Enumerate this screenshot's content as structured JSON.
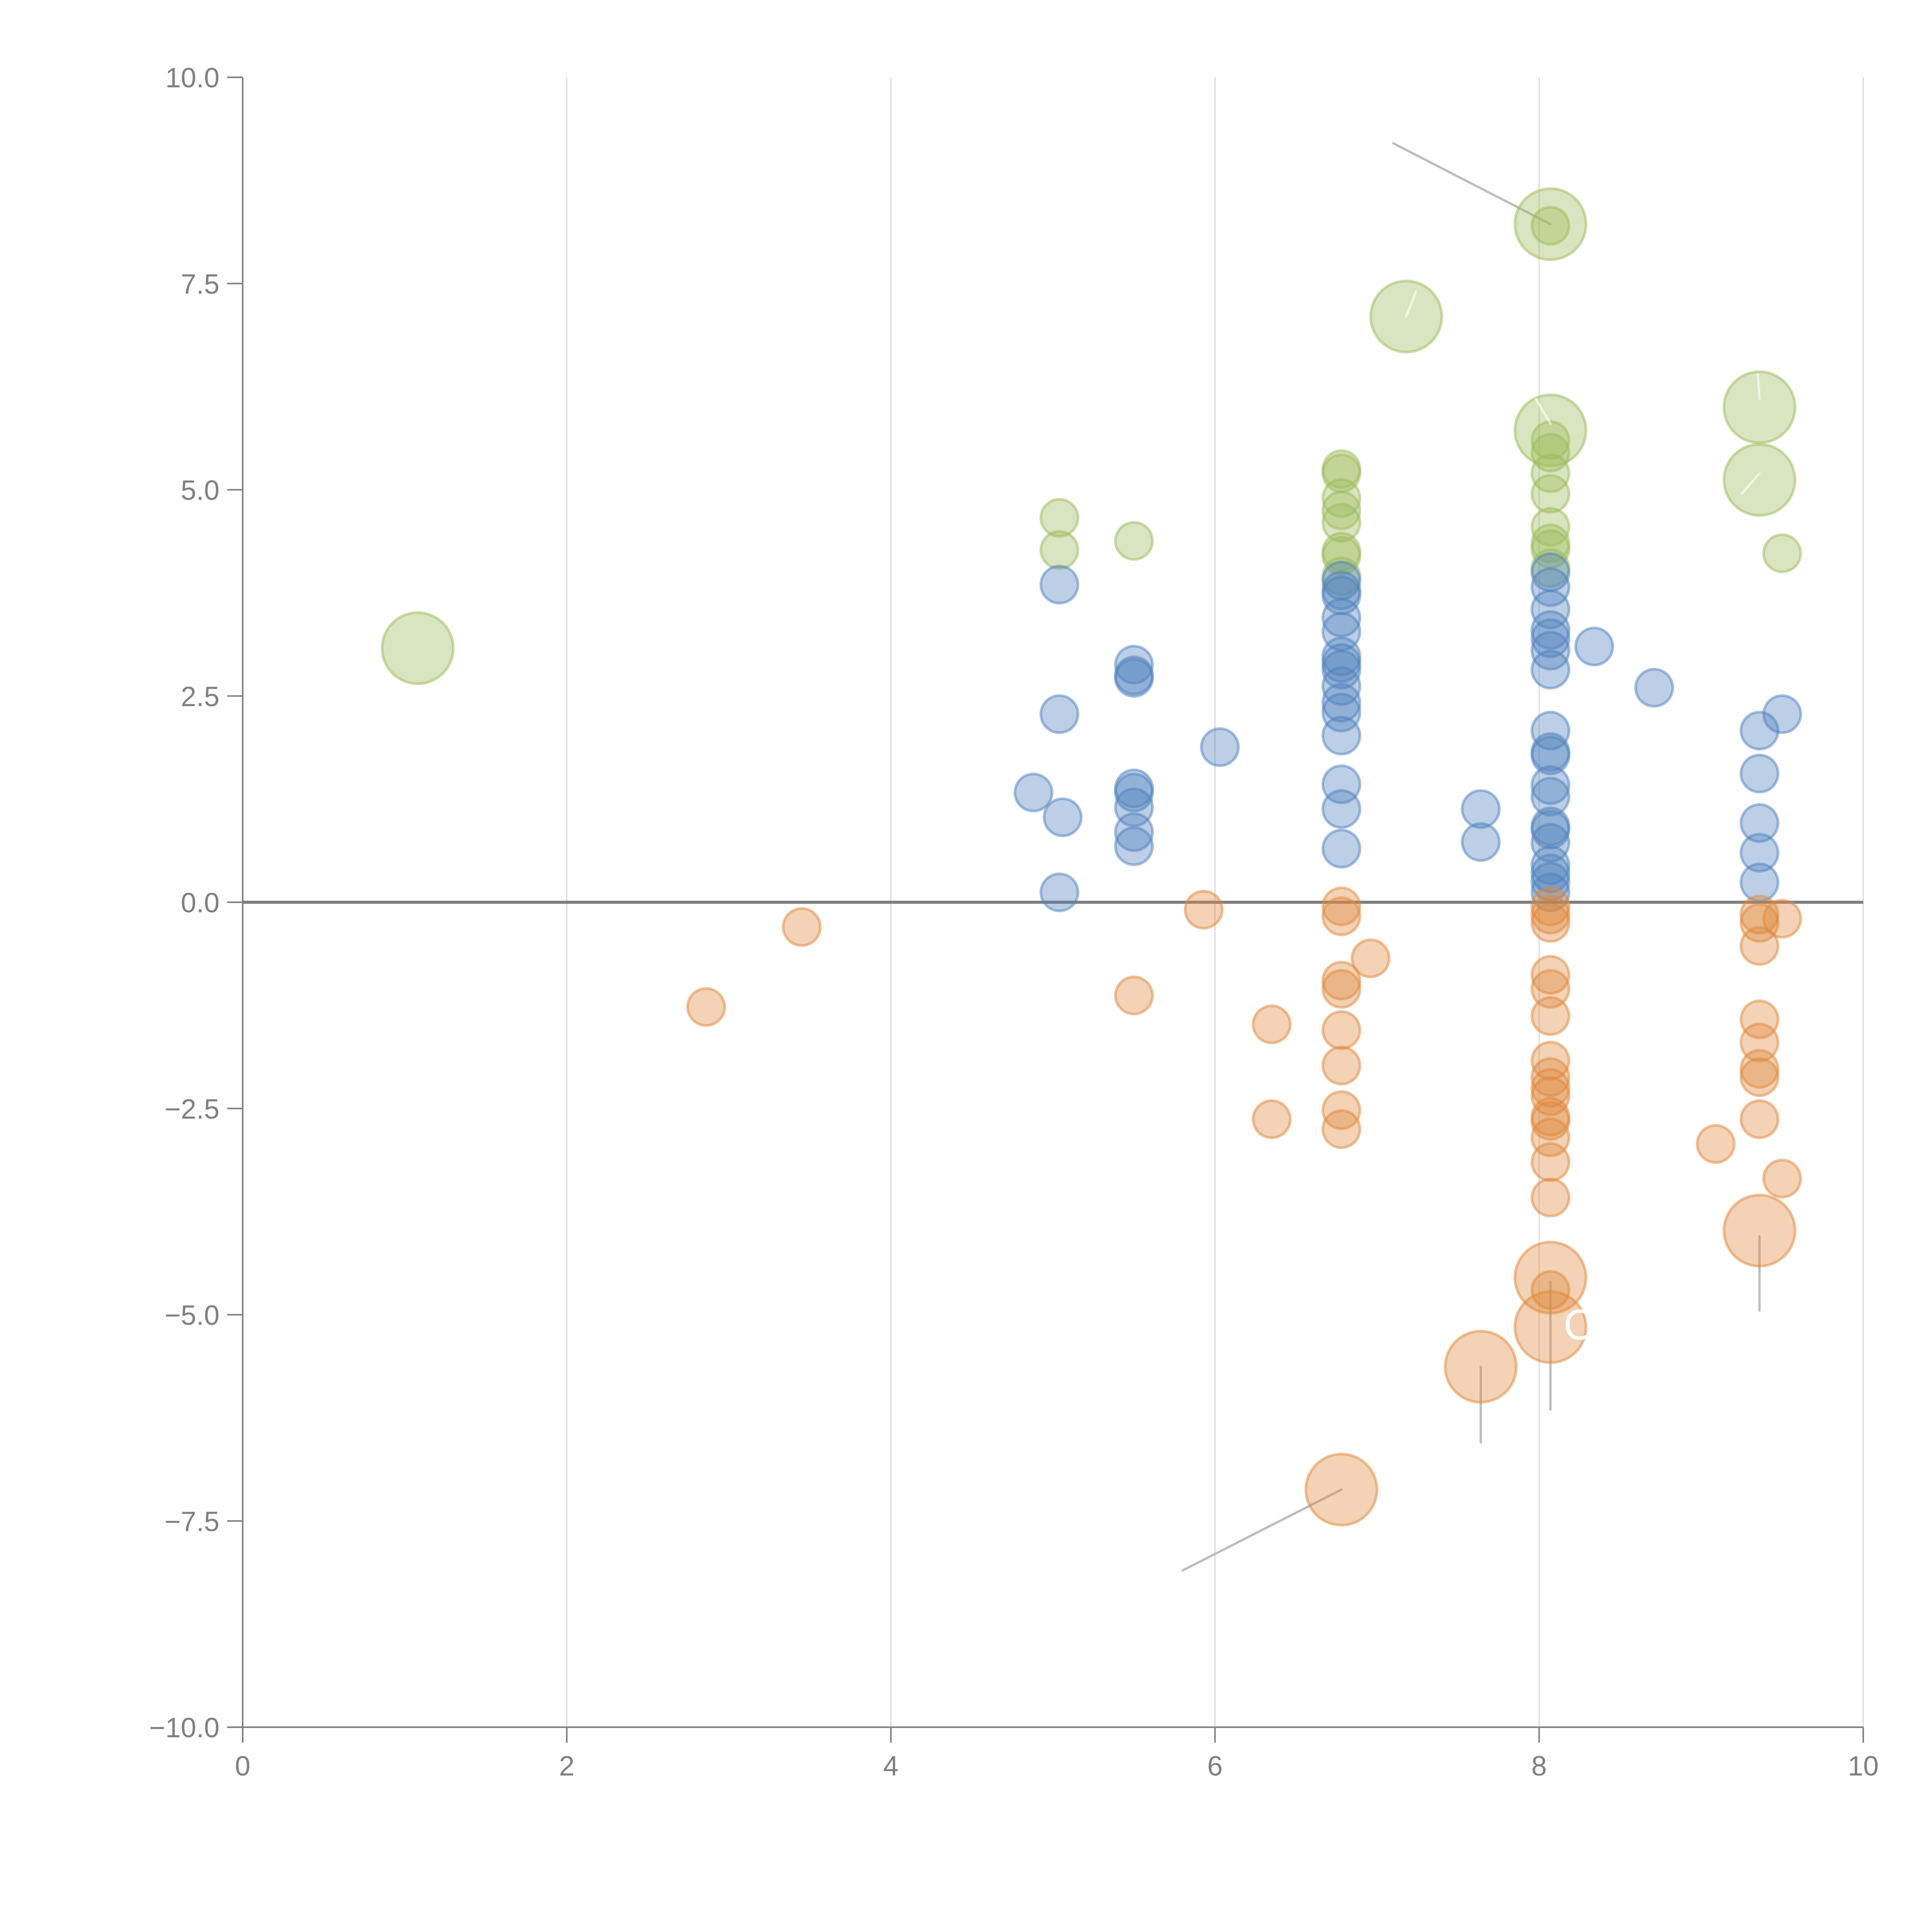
{
  "chart_data": {
    "type": "scatter",
    "title": "",
    "xlabel": "",
    "ylabel": "",
    "xlim": [
      0,
      10
    ],
    "ylim": [
      -10,
      10
    ],
    "x_ticks": [
      "0",
      "2",
      "4",
      "6",
      "8",
      "10"
    ],
    "y_ticks": [
      "10.0",
      "7.5",
      "5.0",
      "2.5",
      "0.0",
      "−2.5",
      "−5.0",
      "−7.5",
      "−10.0"
    ],
    "grid": "vertical",
    "reference_line_y": 0,
    "legend": "none",
    "colors": {
      "green": "#9bbb59",
      "blue": "#4f81bd",
      "orange": "#e0883c"
    },
    "series": [
      {
        "name": "green",
        "points": [
          {
            "x": 1.08,
            "y": 3.08,
            "size": "large"
          },
          {
            "x": 5.04,
            "y": 4.66,
            "size": "small"
          },
          {
            "x": 5.04,
            "y": 4.27,
            "size": "small"
          },
          {
            "x": 5.5,
            "y": 4.38,
            "size": "small"
          },
          {
            "x": 6.78,
            "y": 5.25,
            "size": "small"
          },
          {
            "x": 6.78,
            "y": 5.2,
            "size": "small"
          },
          {
            "x": 6.78,
            "y": 4.9,
            "size": "small"
          },
          {
            "x": 6.78,
            "y": 4.75,
            "size": "small"
          },
          {
            "x": 6.78,
            "y": 4.6,
            "size": "small"
          },
          {
            "x": 6.78,
            "y": 4.25,
            "size": "small"
          },
          {
            "x": 6.78,
            "y": 4.2,
            "size": "small"
          },
          {
            "x": 6.78,
            "y": 3.95,
            "size": "small"
          },
          {
            "x": 7.18,
            "y": 7.1,
            "size": "large"
          },
          {
            "x": 8.07,
            "y": 8.22,
            "size": "large"
          },
          {
            "x": 8.07,
            "y": 8.2,
            "size": "small"
          },
          {
            "x": 8.07,
            "y": 5.72,
            "size": "large"
          },
          {
            "x": 8.07,
            "y": 5.6,
            "size": "small"
          },
          {
            "x": 8.07,
            "y": 5.45,
            "size": "small"
          },
          {
            "x": 8.07,
            "y": 5.2,
            "size": "small"
          },
          {
            "x": 8.07,
            "y": 4.95,
            "size": "small"
          },
          {
            "x": 8.07,
            "y": 4.55,
            "size": "small"
          },
          {
            "x": 8.07,
            "y": 4.35,
            "size": "small"
          },
          {
            "x": 8.07,
            "y": 4.28,
            "size": "small"
          },
          {
            "x": 8.07,
            "y": 4.05,
            "size": "small"
          },
          {
            "x": 9.36,
            "y": 6.0,
            "size": "large"
          },
          {
            "x": 9.36,
            "y": 5.12,
            "size": "large"
          },
          {
            "x": 9.5,
            "y": 4.23,
            "size": "small"
          }
        ]
      },
      {
        "name": "blue",
        "points": [
          {
            "x": 4.88,
            "y": 1.33
          },
          {
            "x": 5.04,
            "y": 3.85
          },
          {
            "x": 5.04,
            "y": 2.28
          },
          {
            "x": 5.06,
            "y": 1.03
          },
          {
            "x": 5.04,
            "y": 0.12
          },
          {
            "x": 5.5,
            "y": 2.88
          },
          {
            "x": 5.5,
            "y": 2.75
          },
          {
            "x": 5.5,
            "y": 2.72
          },
          {
            "x": 5.5,
            "y": 1.38
          },
          {
            "x": 5.5,
            "y": 1.33
          },
          {
            "x": 5.5,
            "y": 1.15
          },
          {
            "x": 5.5,
            "y": 0.85
          },
          {
            "x": 5.5,
            "y": 0.68
          },
          {
            "x": 6.03,
            "y": 1.88
          },
          {
            "x": 6.78,
            "y": 3.9
          },
          {
            "x": 6.78,
            "y": 3.78
          },
          {
            "x": 6.78,
            "y": 3.72
          },
          {
            "x": 6.78,
            "y": 3.45
          },
          {
            "x": 6.78,
            "y": 3.28
          },
          {
            "x": 6.78,
            "y": 2.98
          },
          {
            "x": 6.78,
            "y": 2.9
          },
          {
            "x": 6.78,
            "y": 2.82
          },
          {
            "x": 6.78,
            "y": 2.62
          },
          {
            "x": 6.78,
            "y": 2.42
          },
          {
            "x": 6.78,
            "y": 2.3
          },
          {
            "x": 6.78,
            "y": 2.02
          },
          {
            "x": 6.78,
            "y": 1.43
          },
          {
            "x": 6.78,
            "y": 1.13
          },
          {
            "x": 6.78,
            "y": 0.65
          },
          {
            "x": 7.64,
            "y": 1.13
          },
          {
            "x": 7.64,
            "y": 0.73
          },
          {
            "x": 8.07,
            "y": 4.0
          },
          {
            "x": 8.07,
            "y": 3.82
          },
          {
            "x": 8.07,
            "y": 3.55
          },
          {
            "x": 8.07,
            "y": 3.3
          },
          {
            "x": 8.07,
            "y": 3.2
          },
          {
            "x": 8.07,
            "y": 3.05
          },
          {
            "x": 8.07,
            "y": 2.82
          },
          {
            "x": 8.07,
            "y": 2.08
          },
          {
            "x": 8.07,
            "y": 1.82
          },
          {
            "x": 8.07,
            "y": 1.78
          },
          {
            "x": 8.07,
            "y": 1.42
          },
          {
            "x": 8.07,
            "y": 1.28
          },
          {
            "x": 8.07,
            "y": 0.92
          },
          {
            "x": 8.07,
            "y": 0.88
          },
          {
            "x": 8.07,
            "y": 0.72
          },
          {
            "x": 8.07,
            "y": 0.45
          },
          {
            "x": 8.07,
            "y": 0.35
          },
          {
            "x": 8.07,
            "y": 0.25
          },
          {
            "x": 8.07,
            "y": 0.12
          },
          {
            "x": 8.34,
            "y": 3.1
          },
          {
            "x": 8.71,
            "y": 2.6
          },
          {
            "x": 9.36,
            "y": 2.08
          },
          {
            "x": 9.36,
            "y": 1.56
          },
          {
            "x": 9.36,
            "y": 0.96
          },
          {
            "x": 9.36,
            "y": 0.6
          },
          {
            "x": 9.36,
            "y": 0.24
          },
          {
            "x": 9.5,
            "y": 2.28
          }
        ]
      },
      {
        "name": "orange",
        "points": [
          {
            "x": 2.86,
            "y": -1.27,
            "size": "small"
          },
          {
            "x": 3.45,
            "y": -0.3,
            "size": "small"
          },
          {
            "x": 5.5,
            "y": -1.13,
            "size": "small"
          },
          {
            "x": 5.93,
            "y": -0.09,
            "size": "small"
          },
          {
            "x": 6.35,
            "y": -1.48,
            "size": "small"
          },
          {
            "x": 6.35,
            "y": -2.63,
            "size": "small"
          },
          {
            "x": 6.78,
            "y": -0.05,
            "size": "small"
          },
          {
            "x": 6.78,
            "y": -0.17,
            "size": "small"
          },
          {
            "x": 6.78,
            "y": -0.95,
            "size": "small"
          },
          {
            "x": 6.78,
            "y": -1.05,
            "size": "small"
          },
          {
            "x": 6.78,
            "y": -1.55,
            "size": "small"
          },
          {
            "x": 6.78,
            "y": -1.98,
            "size": "small"
          },
          {
            "x": 6.78,
            "y": -2.52,
            "size": "small"
          },
          {
            "x": 6.78,
            "y": -2.75,
            "size": "small"
          },
          {
            "x": 6.78,
            "y": -7.12,
            "size": "large"
          },
          {
            "x": 6.96,
            "y": -0.68,
            "size": "small"
          },
          {
            "x": 7.64,
            "y": -5.63,
            "size": "large"
          },
          {
            "x": 8.07,
            "y": -0.05,
            "size": "small"
          },
          {
            "x": 8.07,
            "y": -0.15,
            "size": "small"
          },
          {
            "x": 8.07,
            "y": -0.25,
            "size": "small"
          },
          {
            "x": 8.07,
            "y": -0.88,
            "size": "small"
          },
          {
            "x": 8.07,
            "y": -1.05,
            "size": "small"
          },
          {
            "x": 8.07,
            "y": -1.38,
            "size": "small"
          },
          {
            "x": 8.07,
            "y": -1.92,
            "size": "small"
          },
          {
            "x": 8.07,
            "y": -2.12,
            "size": "small"
          },
          {
            "x": 8.07,
            "y": -2.25,
            "size": "small"
          },
          {
            "x": 8.07,
            "y": -2.35,
            "size": "small"
          },
          {
            "x": 8.07,
            "y": -2.6,
            "size": "small"
          },
          {
            "x": 8.07,
            "y": -2.65,
            "size": "small"
          },
          {
            "x": 8.07,
            "y": -2.85,
            "size": "small"
          },
          {
            "x": 8.07,
            "y": -3.15,
            "size": "small"
          },
          {
            "x": 8.07,
            "y": -3.58,
            "size": "small"
          },
          {
            "x": 8.07,
            "y": -4.55,
            "size": "large"
          },
          {
            "x": 8.07,
            "y": -4.7,
            "size": "small"
          },
          {
            "x": 8.07,
            "y": -5.15,
            "size": "large"
          },
          {
            "x": 9.09,
            "y": -2.93,
            "size": "small"
          },
          {
            "x": 9.36,
            "y": -0.15,
            "size": "small"
          },
          {
            "x": 9.36,
            "y": -0.25,
            "size": "small"
          },
          {
            "x": 9.36,
            "y": -0.53,
            "size": "small"
          },
          {
            "x": 9.36,
            "y": -1.42,
            "size": "small"
          },
          {
            "x": 9.36,
            "y": -1.7,
            "size": "small"
          },
          {
            "x": 9.36,
            "y": -2.02,
            "size": "small"
          },
          {
            "x": 9.36,
            "y": -2.12,
            "size": "small"
          },
          {
            "x": 9.36,
            "y": -2.63,
            "size": "small"
          },
          {
            "x": 9.36,
            "y": -3.98,
            "size": "large"
          },
          {
            "x": 9.5,
            "y": -0.2,
            "size": "small"
          },
          {
            "x": 9.5,
            "y": -3.35,
            "size": "small"
          }
        ]
      }
    ],
    "annotations": [
      {
        "text": "C",
        "x": 8.15,
        "y": -5.3,
        "color": "#ffffff"
      }
    ],
    "leader_lines": [
      {
        "from": [
          8.07,
          8.22
        ],
        "to": [
          7.1,
          9.2
        ],
        "color": "gray"
      },
      {
        "from": [
          6.78,
          -7.12
        ],
        "to": [
          5.8,
          -8.1
        ],
        "color": "gray"
      },
      {
        "from": [
          7.64,
          -5.63
        ],
        "to": [
          7.64,
          -6.55
        ],
        "color": "gray"
      },
      {
        "from": [
          8.07,
          -4.6
        ],
        "to": [
          8.07,
          -6.15
        ],
        "color": "gray"
      },
      {
        "from": [
          9.36,
          -4.05
        ],
        "to": [
          9.36,
          -4.95
        ],
        "color": "gray"
      },
      {
        "from": [
          7.18,
          7.1
        ],
        "to": [
          7.24,
          7.4
        ],
        "color": "white"
      },
      {
        "from": [
          8.07,
          5.8
        ],
        "to": [
          7.98,
          6.1
        ],
        "color": "white"
      },
      {
        "from": [
          9.36,
          6.1
        ],
        "to": [
          9.35,
          6.4
        ],
        "color": "white"
      },
      {
        "from": [
          9.36,
          5.2
        ],
        "to": [
          9.25,
          4.95
        ],
        "color": "white"
      }
    ]
  }
}
